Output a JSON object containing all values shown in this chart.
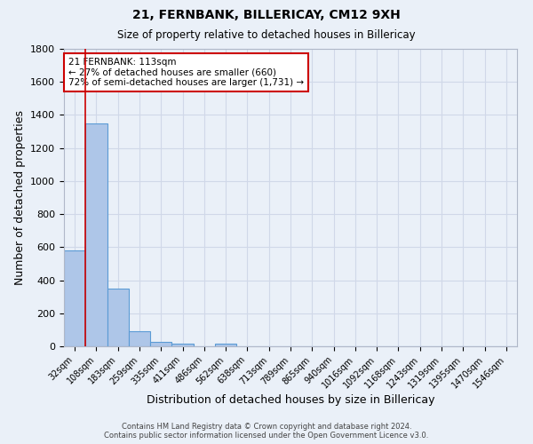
{
  "title": "21, FERNBANK, BILLERICAY, CM12 9XH",
  "subtitle": "Size of property relative to detached houses in Billericay",
  "xlabel": "Distribution of detached houses by size in Billericay",
  "ylabel": "Number of detached properties",
  "footer_line1": "Contains HM Land Registry data © Crown copyright and database right 2024.",
  "footer_line2": "Contains public sector information licensed under the Open Government Licence v3.0.",
  "bin_labels": [
    "32sqm",
    "108sqm",
    "183sqm",
    "259sqm",
    "335sqm",
    "411sqm",
    "486sqm",
    "562sqm",
    "638sqm",
    "713sqm",
    "789sqm",
    "865sqm",
    "940sqm",
    "1016sqm",
    "1092sqm",
    "1168sqm",
    "1243sqm",
    "1319sqm",
    "1395sqm",
    "1470sqm",
    "1546sqm"
  ],
  "bar_values": [
    580,
    1350,
    350,
    90,
    25,
    15,
    0,
    15,
    0,
    0,
    0,
    0,
    0,
    0,
    0,
    0,
    0,
    0,
    0,
    0,
    0
  ],
  "bar_color": "#aec6e8",
  "bar_edgecolor": "#5b9bd5",
  "grid_color": "#d0d8e8",
  "background_color": "#eaf0f8",
  "vline_color": "#cc0000",
  "annotation_text": "21 FERNBANK: 113sqm\n← 27% of detached houses are smaller (660)\n72% of semi-detached houses are larger (1,731) →",
  "annotation_box_edgecolor": "#cc0000",
  "annotation_box_facecolor": "#ffffff",
  "ylim": [
    0,
    1800
  ],
  "yticks": [
    0,
    200,
    400,
    600,
    800,
    1000,
    1200,
    1400,
    1600,
    1800
  ]
}
